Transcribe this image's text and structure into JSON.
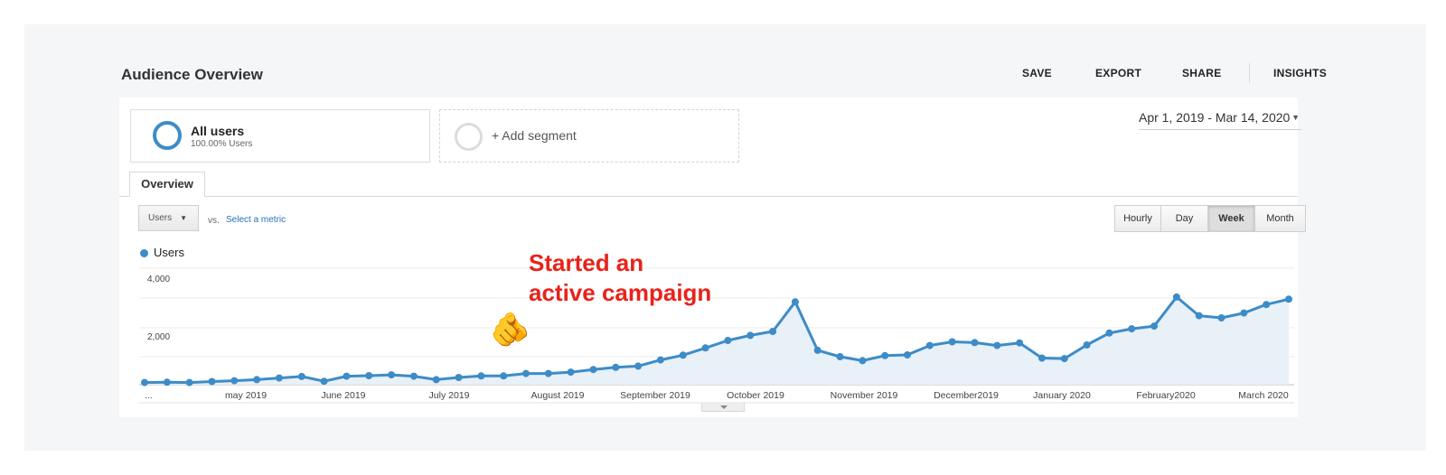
{
  "header": {
    "title": "Audience Overview",
    "actions": [
      {
        "label": "SAVE"
      },
      {
        "label": "EXPORT"
      },
      {
        "label": "SHARE"
      },
      {
        "label": "INSIGHTS"
      }
    ]
  },
  "segments": {
    "all_users": {
      "name": "All users",
      "detail": "100.00% Users"
    },
    "add_segment": "+ Add segment"
  },
  "date_range": {
    "label": "Apr 1, 2019 - Mar 14, 2020",
    "caret": "▼"
  },
  "tabs": {
    "overview": "Overview"
  },
  "metric": {
    "selected": "Users",
    "caret": "▼",
    "vs": "vs.",
    "select_link": "Select a metric"
  },
  "granularity": {
    "options": [
      "Hourly",
      "Day",
      "Week",
      "Month"
    ],
    "selected": "Week"
  },
  "legend": {
    "label": "Users",
    "color": "#3d8cc7"
  },
  "annotation": {
    "line1": "Started an",
    "line2": "active campaign",
    "emoji": "🫵",
    "color": "#e8231a"
  },
  "chart_data": {
    "type": "area",
    "series": [
      {
        "name": "Users",
        "color": "#3d8cc7",
        "values": [
          80,
          90,
          80,
          120,
          150,
          190,
          250,
          310,
          130,
          320,
          340,
          370,
          320,
          190,
          270,
          330,
          330,
          420,
          420,
          470,
          570,
          650,
          700,
          930,
          1110,
          1380,
          1660,
          1850,
          2000,
          3110,
          1290,
          1050,
          900,
          1090,
          1120,
          1470,
          1610,
          1580,
          1470,
          1570,
          1000,
          980,
          1490,
          1940,
          2100,
          2200,
          3290,
          2590,
          2510,
          2690,
          3010,
          3210
        ]
      }
    ],
    "y_ticks": [
      "4,000",
      "2,000"
    ],
    "ylim": [
      0,
      4000
    ],
    "x_labels": [
      "...",
      "may 2019",
      "June 2019",
      "July 2019",
      "August 2019",
      "September 2019",
      "October 2019",
      "November 2019",
      "December2019",
      "January 2020",
      "February2020",
      "March 2020"
    ],
    "grid": true,
    "legend_position": "top-left"
  }
}
